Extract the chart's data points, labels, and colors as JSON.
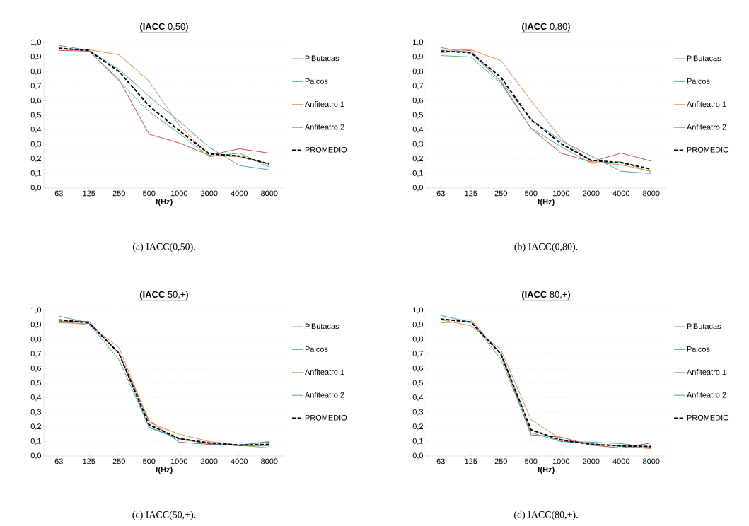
{
  "chart_data": [
    {
      "type": "line",
      "title": "**(IACC** 0,50)",
      "xlabel": "f(Hz)",
      "categories": [
        "63",
        "125",
        "250",
        "500",
        "1000",
        "2000",
        "4000",
        "8000"
      ],
      "ylim": [
        0,
        1
      ],
      "yticks": [
        {
          "value": 0,
          "label": "0,0"
        },
        {
          "value": 0.1,
          "label": "0,1"
        },
        {
          "value": 0.2,
          "label": "0,2"
        },
        {
          "value": 0.3,
          "label": "0,3"
        },
        {
          "value": 0.4,
          "label": "0,4"
        },
        {
          "value": 0.5,
          "label": "0,5"
        },
        {
          "value": 0.6,
          "label": "0,6"
        },
        {
          "value": 0.7,
          "label": "0,7"
        },
        {
          "value": 0.8,
          "label": "0,8"
        },
        {
          "value": 0.9,
          "label": "0,9"
        },
        {
          "value": 1,
          "label": "1,0"
        }
      ],
      "grid": "y",
      "legend": "right",
      "annotations": [
        "(a) IACC(0,50)."
      ],
      "series": [
        {
          "name": "P.Butacas",
          "color": "#d03a3a",
          "values": [
            0.945,
            0.94,
            0.745,
            0.37,
            0.31,
            0.225,
            0.27,
            0.24
          ]
        },
        {
          "name": "Palcos",
          "color": "#2fb56a",
          "values": [
            0.955,
            0.945,
            0.735,
            0.525,
            0.375,
            0.215,
            0.24,
            0.145
          ]
        },
        {
          "name": "Anfiteatro 1",
          "color": "#ed7d31",
          "values": [
            0.955,
            0.95,
            0.915,
            0.735,
            0.43,
            0.225,
            0.215,
            0.165
          ]
        },
        {
          "name": "Anfiteatro 2",
          "color": "#3a8fd6",
          "values": [
            0.98,
            0.945,
            0.815,
            0.63,
            0.46,
            0.28,
            0.155,
            0.125
          ]
        },
        {
          "name": "PROMEDIO",
          "color": "#000000",
          "line_style": "dashed",
          "values": [
            0.96,
            0.945,
            0.8,
            0.565,
            0.395,
            0.235,
            0.22,
            0.165
          ]
        }
      ]
    },
    {
      "type": "line",
      "title": "**(IACC** 0,80)",
      "xlabel": "f(Hz)",
      "categories": [
        "63",
        "125",
        "250",
        "500",
        "1000",
        "2000",
        "4000",
        "8000"
      ],
      "ylim": [
        0,
        1
      ],
      "yticks": [
        {
          "value": 0,
          "label": "0,0"
        },
        {
          "value": 0.1,
          "label": "0,1"
        },
        {
          "value": 0.2,
          "label": "0,2"
        },
        {
          "value": 0.3,
          "label": "0,3"
        },
        {
          "value": 0.4,
          "label": "0,4"
        },
        {
          "value": 0.5,
          "label": "0,5"
        },
        {
          "value": 0.6,
          "label": "0,6"
        },
        {
          "value": 0.7,
          "label": "0,7"
        },
        {
          "value": 0.8,
          "label": "0,8"
        },
        {
          "value": 0.9,
          "label": "0,9"
        },
        {
          "value": 1,
          "label": "1,0"
        }
      ],
      "grid": "y",
      "legend": "right",
      "annotations": [
        "(b) IACC(0,80)."
      ],
      "series": [
        {
          "name": "P.Butacas",
          "color": "#d03a3a",
          "values": [
            0.93,
            0.945,
            0.73,
            0.41,
            0.24,
            0.18,
            0.24,
            0.185
          ]
        },
        {
          "name": "Palcos",
          "color": "#2fb56a",
          "values": [
            0.91,
            0.9,
            0.72,
            0.41,
            0.285,
            0.17,
            0.18,
            0.11
          ]
        },
        {
          "name": "Anfiteatro 1",
          "color": "#ed7d31",
          "values": [
            0.945,
            0.95,
            0.875,
            0.6,
            0.34,
            0.18,
            0.16,
            0.115
          ]
        },
        {
          "name": "Anfiteatro 2",
          "color": "#3a8fd6",
          "values": [
            0.965,
            0.925,
            0.735,
            0.47,
            0.325,
            0.22,
            0.115,
            0.1
          ]
        },
        {
          "name": "PROMEDIO",
          "color": "#000000",
          "line_style": "dashed",
          "values": [
            0.94,
            0.93,
            0.76,
            0.47,
            0.305,
            0.19,
            0.175,
            0.13
          ]
        }
      ]
    },
    {
      "type": "line",
      "title": "**(IACC** 50,+)",
      "xlabel": "f(Hz)",
      "categories": [
        "63",
        "125",
        "250",
        "500",
        "1000",
        "2000",
        "4000",
        "8000"
      ],
      "ylim": [
        0,
        1
      ],
      "yticks": [
        {
          "value": 0,
          "label": "0,0"
        },
        {
          "value": 0.1,
          "label": "0,1"
        },
        {
          "value": 0.2,
          "label": "0,2"
        },
        {
          "value": 0.3,
          "label": "0,3"
        },
        {
          "value": 0.4,
          "label": "0,4"
        },
        {
          "value": 0.5,
          "label": "0,5"
        },
        {
          "value": 0.6,
          "label": "0,6"
        },
        {
          "value": 0.7,
          "label": "0,7"
        },
        {
          "value": 0.8,
          "label": "0,8"
        },
        {
          "value": 0.9,
          "label": "0,9"
        },
        {
          "value": 1,
          "label": "1,0"
        }
      ],
      "grid": "y",
      "legend": "right",
      "annotations": [
        "(c) IACC(50,+)."
      ],
      "series": [
        {
          "name": "P.Butacas",
          "color": "#d03a3a",
          "values": [
            0.925,
            0.925,
            0.705,
            0.245,
            0.095,
            0.08,
            0.075,
            0.095
          ]
        },
        {
          "name": "Palcos",
          "color": "#2fb56a",
          "values": [
            0.915,
            0.91,
            0.66,
            0.2,
            0.115,
            0.085,
            0.075,
            0.1
          ]
        },
        {
          "name": "Anfiteatro 1",
          "color": "#ed7d31",
          "values": [
            0.925,
            0.9,
            0.745,
            0.23,
            0.15,
            0.1,
            0.075,
            0.055
          ]
        },
        {
          "name": "Anfiteatro 2",
          "color": "#3a8fd6",
          "values": [
            0.96,
            0.915,
            0.705,
            0.195,
            0.12,
            0.085,
            0.07,
            0.07
          ]
        },
        {
          "name": "PROMEDIO",
          "color": "#000000",
          "line_style": "dashed",
          "values": [
            0.935,
            0.915,
            0.705,
            0.215,
            0.12,
            0.09,
            0.075,
            0.08
          ]
        }
      ]
    },
    {
      "type": "line",
      "title": "**(IACC** 80,+)",
      "xlabel": "f(Hz)",
      "categories": [
        "63",
        "125",
        "250",
        "500",
        "1000",
        "2000",
        "4000",
        "8000"
      ],
      "ylim": [
        0,
        1
      ],
      "yticks": [
        {
          "value": 0,
          "label": "0,0"
        },
        {
          "value": 0.1,
          "label": "0,1"
        },
        {
          "value": 0.2,
          "label": "0,2"
        },
        {
          "value": 0.3,
          "label": "0,3"
        },
        {
          "value": 0.4,
          "label": "0,4"
        },
        {
          "value": 0.5,
          "label": "0,5"
        },
        {
          "value": 0.6,
          "label": "0,6"
        },
        {
          "value": 0.7,
          "label": "0,7"
        },
        {
          "value": 0.8,
          "label": "0,8"
        },
        {
          "value": 0.9,
          "label": "0,9"
        },
        {
          "value": 1,
          "label": "1,0"
        }
      ],
      "grid": "y",
      "legend": "right",
      "annotations": [
        "(d) IACC(80,+)."
      ],
      "series": [
        {
          "name": "P.Butacas",
          "color": "#d03a3a",
          "values": [
            0.935,
            0.935,
            0.7,
            0.145,
            0.13,
            0.075,
            0.055,
            0.09
          ]
        },
        {
          "name": "Palcos",
          "color": "#2fb56a",
          "values": [
            0.915,
            0.925,
            0.665,
            0.16,
            0.1,
            0.085,
            0.065,
            0.055
          ]
        },
        {
          "name": "Anfiteatro 1",
          "color": "#ed7d31",
          "values": [
            0.935,
            0.895,
            0.73,
            0.25,
            0.115,
            0.08,
            0.07,
            0.05
          ]
        },
        {
          "name": "Anfiteatro 2",
          "color": "#3a8fd6",
          "values": [
            0.965,
            0.92,
            0.705,
            0.18,
            0.1,
            0.095,
            0.085,
            0.06
          ]
        },
        {
          "name": "PROMEDIO",
          "color": "#000000",
          "line_style": "dashed",
          "values": [
            0.94,
            0.92,
            0.7,
            0.18,
            0.11,
            0.08,
            0.07,
            0.065
          ]
        }
      ]
    }
  ]
}
